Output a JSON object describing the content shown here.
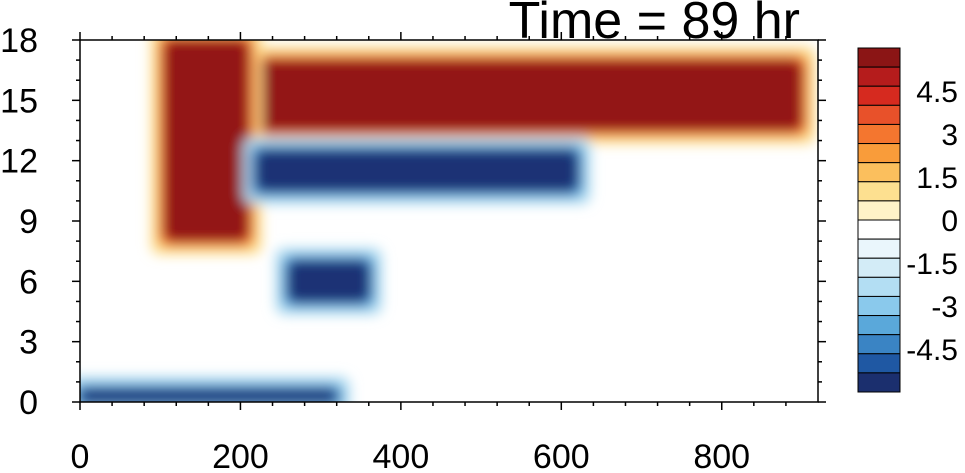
{
  "chart_data": {
    "type": "heatmap",
    "title": "Time = 89 hr",
    "xlabel": "",
    "ylabel": "",
    "xlim": [
      0,
      920
    ],
    "ylim": [
      0,
      18
    ],
    "x_ticks": [
      0,
      200,
      400,
      600,
      800
    ],
    "x_tick_labels": [
      "0",
      "200",
      "400",
      "600",
      "800"
    ],
    "y_ticks": [
      0,
      3,
      6,
      9,
      12,
      15,
      18
    ],
    "y_tick_labels": [
      "0",
      "3",
      "6",
      "9",
      "12",
      "15",
      "18"
    ],
    "grid": false,
    "legend": "colorbar-right",
    "colorbar": {
      "min": -6,
      "max": 6,
      "step": 0.75,
      "labeled_values": [
        4.5,
        3,
        1.5,
        0,
        -1.5,
        -3,
        -4.5
      ],
      "labels": [
        "4.5",
        "3",
        "1.5",
        "0",
        "-1.5",
        "-3",
        "-4.5"
      ],
      "colors_top_to_bottom": [
        "#8b1515",
        "#b51c1c",
        "#d62a1f",
        "#e8512a",
        "#f4762f",
        "#f99c3a",
        "#fbbf5d",
        "#fde090",
        "#fff3c8",
        "#ffffff",
        "#eaf6fc",
        "#d3ecf7",
        "#b3def3",
        "#8ac9ec",
        "#5aa8da",
        "#3a84c4",
        "#1f58a3",
        "#1b2f6e"
      ]
    },
    "features": [
      {
        "name": "upper maximum band",
        "x_range": [
          210,
          900
        ],
        "z_range": [
          13.5,
          17
        ],
        "sign": "positive",
        "peak": 6
      },
      {
        "name": "tilted maximum column",
        "x_range": [
          105,
          210
        ],
        "z_range": [
          8,
          18
        ],
        "sign": "positive",
        "peak": 6
      },
      {
        "name": "minimum band below upper maximum",
        "x_range": [
          220,
          620
        ],
        "z_range": [
          10.5,
          12.5
        ],
        "sign": "negative",
        "peak": -4.5
      },
      {
        "name": "near-surface minimum",
        "x_range": [
          0,
          320
        ],
        "z_range": [
          0,
          0.6
        ],
        "sign": "negative",
        "peak": -6
      },
      {
        "name": "mid-level minimum",
        "x_range": [
          260,
          360
        ],
        "z_range": [
          5,
          7
        ],
        "sign": "negative",
        "peak": -5
      }
    ]
  }
}
